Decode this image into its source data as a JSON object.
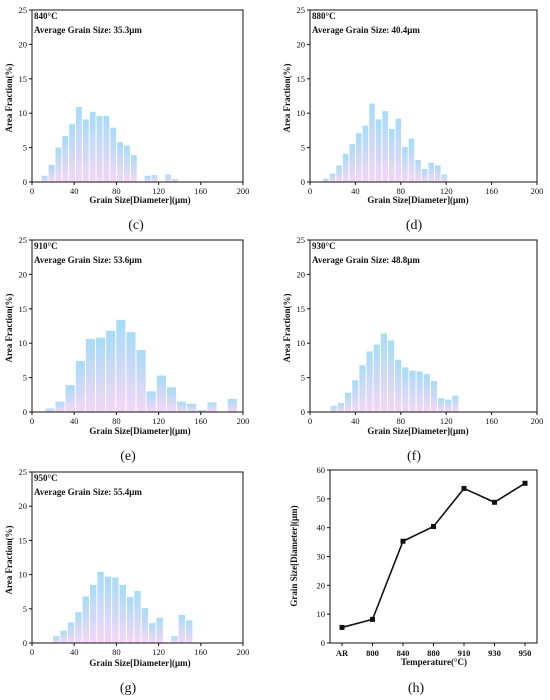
{
  "figure": {
    "panels": [
      {
        "caption": "(c)",
        "title_line1": "840°C",
        "title_line2": "Average Grain Size:  35.3μm"
      },
      {
        "caption": "(d)",
        "title_line1": "880°C",
        "title_line2": "Average Grain Size:  40.4μm"
      },
      {
        "caption": "(e)",
        "title_line1": "910°C",
        "title_line2": "Average Grain Size:  53.6μm"
      },
      {
        "caption": "(f)",
        "title_line1": "930°C",
        "title_line2": "Average Grain Size:  48.8μm"
      },
      {
        "caption": "(g)",
        "title_line1": "950°C",
        "title_line2": "Average Grain Size:  55.4μm"
      },
      {
        "caption": "(h)",
        "title_line1": "",
        "title_line2": ""
      }
    ]
  },
  "colors": {
    "bar_top": "#a6dcf7",
    "bar_bottom": "#f5d6f7",
    "line": "#111111",
    "axis": "#111111"
  },
  "chart_data": [
    {
      "type": "bar",
      "title": "840°C",
      "subtitle": "Average Grain Size:  35.3μm",
      "xlabel": "Grain Size[Diameter](μm)",
      "ylabel": "Area Fraction(%)",
      "xlim": [
        0,
        200
      ],
      "ylim": [
        0,
        25
      ],
      "xticks": [
        0,
        40,
        80,
        120,
        160,
        200
      ],
      "yticks": [
        0,
        5,
        10,
        15,
        20,
        25
      ],
      "bin_width": 6.5,
      "x": [
        12,
        18.5,
        25,
        31.5,
        38,
        44.5,
        51,
        57.5,
        64,
        70.5,
        77,
        83.5,
        90,
        96.5,
        103,
        109.5,
        116,
        122.5,
        129,
        135.5
      ],
      "values": [
        0.9,
        2.5,
        5.0,
        6.7,
        8.4,
        10.9,
        9.1,
        10.2,
        9.6,
        9.6,
        7.9,
        5.8,
        5.3,
        3.9,
        0.0,
        0.9,
        1.0,
        0.0,
        1.1,
        0.4
      ]
    },
    {
      "type": "bar",
      "title": "880°C",
      "subtitle": "Average Grain Size:  40.4μm",
      "xlabel": "Grain Size[Diameter](μm)",
      "ylabel": "Area Fraction(%)",
      "xlim": [
        0,
        200
      ],
      "ylim": [
        0,
        25
      ],
      "xticks": [
        0,
        40,
        80,
        120,
        160,
        200
      ],
      "yticks": [
        0,
        5,
        10,
        15,
        20,
        25
      ],
      "bin_width": 5.8,
      "x": [
        14,
        19.8,
        25.6,
        31.4,
        37.2,
        43,
        48.8,
        54.6,
        60.4,
        66.2,
        72,
        77.8,
        83.6,
        89.4,
        95.2,
        101,
        106.8,
        112.6,
        118.4
      ],
      "values": [
        0.5,
        1.2,
        2.4,
        4.1,
        5.5,
        7.1,
        8.2,
        11.4,
        9.1,
        10.3,
        7.7,
        9.2,
        5.1,
        6.3,
        3.2,
        1.9,
        2.8,
        2.4,
        1.1
      ]
    },
    {
      "type": "bar",
      "title": "910°C",
      "subtitle": "Average Grain Size:  53.6μm",
      "xlabel": "Grain Size[Diameter](μm)",
      "ylabel": "Area Fraction(%)",
      "xlim": [
        0,
        200
      ],
      "ylim": [
        0,
        25
      ],
      "xticks": [
        0,
        40,
        80,
        120,
        160,
        200
      ],
      "yticks": [
        0,
        5,
        10,
        15,
        20,
        25
      ],
      "bin_width": 9.6,
      "x": [
        17,
        26.6,
        36.2,
        45.8,
        55.4,
        65,
        74.6,
        84.2,
        93.8,
        103.4,
        113,
        122.6,
        132.2,
        141.8,
        151.4,
        161,
        170.6,
        180.2,
        189.8
      ],
      "values": [
        0.5,
        1.5,
        3.9,
        7.4,
        10.6,
        10.8,
        11.8,
        13.4,
        11.6,
        9.0,
        3.0,
        5.3,
        3.6,
        1.5,
        1.2,
        0.3,
        1.4,
        0.0,
        1.9
      ]
    },
    {
      "type": "bar",
      "title": "930°C",
      "subtitle": "Average Grain Size:  48.8μm",
      "xlabel": "Grain Size[Diameter](μm)",
      "ylabel": "Area Fraction(%)",
      "xlim": [
        0,
        200
      ],
      "ylim": [
        0,
        25
      ],
      "xticks": [
        0,
        40,
        80,
        120,
        160,
        200
      ],
      "yticks": [
        0,
        5,
        10,
        15,
        20,
        25
      ],
      "bin_width": 6.3,
      "x": [
        21,
        27.3,
        33.6,
        39.9,
        46.2,
        52.5,
        58.8,
        65.1,
        71.4,
        77.7,
        84,
        90.3,
        96.6,
        102.9,
        109.2,
        115.5,
        121.8,
        128.1,
        134.4,
        140.7
      ],
      "values": [
        0.9,
        1.3,
        2.8,
        4.6,
        6.8,
        8.8,
        9.8,
        11.4,
        10.4,
        7.6,
        6.5,
        6.0,
        5.9,
        5.5,
        4.5,
        2.0,
        1.8,
        2.4,
        0.0,
        0.0
      ]
    },
    {
      "type": "bar",
      "title": "950°C",
      "subtitle": "Average Grain Size:  55.4μm",
      "xlabel": "Grain Size[Diameter](μm)",
      "ylabel": "Area Fraction(%)",
      "xlim": [
        0,
        200
      ],
      "ylim": [
        0,
        25
      ],
      "xticks": [
        0,
        40,
        80,
        120,
        160,
        200
      ],
      "yticks": [
        0,
        5,
        10,
        15,
        20,
        25
      ],
      "bin_width": 7.0,
      "x": [
        23,
        30,
        37,
        44,
        51,
        58,
        65,
        72,
        79,
        86,
        93,
        100,
        107,
        114,
        121,
        128,
        135,
        142,
        149,
        156,
        163
      ],
      "values": [
        1.0,
        1.8,
        3.0,
        4.5,
        6.8,
        8.5,
        10.4,
        9.7,
        9.6,
        8.5,
        6.7,
        7.6,
        5.1,
        2.9,
        3.7,
        0.0,
        1.0,
        4.1,
        3.3,
        0.0,
        0.0
      ]
    },
    {
      "type": "line",
      "title": "",
      "xlabel": "Temperature(°C)",
      "ylabel": "Grain Size[Diameter](μm)",
      "categories": [
        "AR",
        "800",
        "840",
        "880",
        "910",
        "930",
        "950"
      ],
      "values": [
        5.4,
        8.2,
        35.3,
        40.4,
        53.6,
        48.8,
        55.4
      ],
      "ylim": [
        0,
        60
      ],
      "yticks": [
        0,
        10,
        20,
        30,
        40,
        50,
        60
      ]
    }
  ]
}
